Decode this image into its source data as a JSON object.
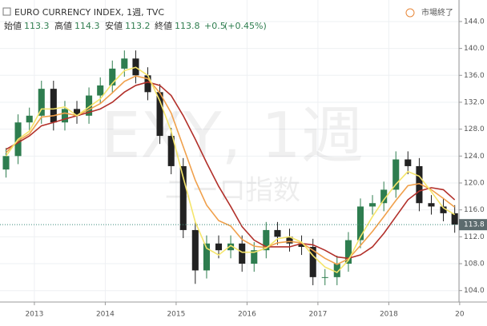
{
  "header": {
    "title": "EURO CURRENCY INDEX, 1週, TVC",
    "open_label": "始値",
    "open": "113.3",
    "high_label": "高値",
    "high": "114.3",
    "low_label": "安値",
    "low": "113.2",
    "close_label": "終値",
    "close": "113.8",
    "change": "+0.5",
    "change_pct": "(+0.45%)",
    "status": "市場終了",
    "watermark": "EXY, 1週",
    "watermark_sub": "ユーロ指数"
  },
  "chart_data": {
    "type": "candlestick",
    "x": [
      2012.6,
      2012.77,
      2012.93,
      2013.1,
      2013.27,
      2013.43,
      2013.6,
      2013.77,
      2013.93,
      2014.1,
      2014.27,
      2014.43,
      2014.6,
      2014.77,
      2014.93,
      2015.1,
      2015.27,
      2015.43,
      2015.6,
      2015.77,
      2015.93,
      2016.1,
      2016.27,
      2016.43,
      2016.6,
      2016.77,
      2016.93,
      2017.1,
      2017.27,
      2017.43,
      2017.6,
      2017.77,
      2017.93,
      2018.1,
      2018.27,
      2018.43,
      2018.6,
      2018.77,
      2018.93
    ],
    "open": [
      122,
      124,
      129,
      130,
      134,
      129,
      131,
      130,
      133,
      134.5,
      137,
      138.5,
      136,
      133.5,
      127,
      122.5,
      113,
      107,
      111,
      110,
      111,
      108,
      110,
      113,
      112,
      111,
      110.5,
      106,
      106,
      108,
      111.5,
      116.5,
      117,
      119,
      123.5,
      122.5,
      117,
      116.5,
      115.5
    ],
    "high": [
      125.2,
      130.2,
      131.2,
      135.2,
      135.2,
      132.2,
      132.2,
      134.2,
      135.7,
      138.2,
      139.7,
      139.7,
      137.2,
      134.7,
      128.2,
      123.7,
      114.2,
      112.2,
      112.2,
      112.2,
      112.2,
      111.2,
      114.2,
      114.2,
      113.2,
      112.2,
      111.7,
      107.2,
      109.2,
      112.7,
      117.7,
      118.2,
      120.2,
      124.7,
      124.7,
      123.7,
      118.2,
      117.7,
      116.7
    ],
    "low": [
      120.8,
      122.8,
      127.8,
      128.8,
      127.8,
      127.8,
      128.8,
      128.8,
      131.8,
      133.3,
      135.8,
      134.8,
      132.3,
      125.8,
      121.3,
      111.8,
      105,
      105.8,
      108.8,
      108.8,
      106.8,
      106.8,
      108.8,
      110.8,
      109.8,
      109.3,
      104.8,
      104.8,
      104.8,
      106.8,
      110.3,
      115.3,
      115.8,
      117.8,
      121.3,
      115.8,
      115.3,
      114.3,
      112.6
    ],
    "close": [
      124,
      129,
      130,
      134,
      129,
      131,
      130,
      133,
      134.5,
      137,
      138.5,
      136,
      133.5,
      127,
      122.5,
      113,
      107,
      111,
      110,
      111,
      108,
      110,
      113,
      112,
      111,
      110.5,
      106,
      106,
      108,
      111.5,
      116.5,
      117,
      119,
      123.5,
      122.5,
      117,
      116.5,
      115.5,
      113.8
    ],
    "up_color": "#2e7d4f",
    "down_color": "#222222",
    "ribbon": [
      {
        "color": "#b2302a",
        "values": [
          125,
          126,
          127,
          128.5,
          129,
          129.5,
          130,
          130.5,
          131,
          132,
          133.5,
          134.5,
          135,
          134.5,
          133,
          130,
          126.5,
          123,
          119.5,
          116.5,
          113.5,
          111.5,
          110.5,
          110.5,
          110.5,
          111,
          110.8,
          110,
          109,
          108.8,
          109.3,
          110.5,
          112.5,
          115,
          117.5,
          118.8,
          119.3,
          119,
          117.5
        ]
      },
      {
        "color": "#f0a04b",
        "values": [
          124.5,
          126.3,
          127.3,
          129.8,
          130,
          130.4,
          130,
          130.9,
          131.8,
          133.4,
          135.1,
          135.9,
          135.5,
          133.4,
          130.4,
          125.4,
          120.4,
          116.7,
          114.4,
          113.6,
          111.6,
          110.6,
          110.4,
          111.1,
          111.3,
          111.1,
          110,
          108.8,
          107.9,
          108.7,
          110.7,
          112.8,
          115,
          117.4,
          119.6,
          119.9,
          119,
          117.7,
          116.4
        ]
      },
      {
        "color": "#f5e56b",
        "values": [
          124,
          126.5,
          127.7,
          131,
          131,
          131.3,
          130,
          131.3,
          132.5,
          134.8,
          136.7,
          137.2,
          136,
          132.2,
          127.7,
          120.8,
          114.2,
          110.3,
          109.3,
          110.7,
          109.7,
          109.7,
          110.3,
          111.7,
          112,
          111.2,
          109.2,
          107.5,
          106.7,
          108.5,
          112,
          115,
          117.5,
          119.8,
          121.7,
          121,
          118.7,
          116.3,
          115.3
        ]
      }
    ],
    "last_value": 113.8,
    "xlim": [
      2012.515,
      2018.99
    ],
    "xticks": [
      2013,
      2014,
      2015,
      2016,
      2017,
      2018,
      {
        "value": 2019,
        "label": "20"
      }
    ],
    "ylim": [
      102.3,
      147.2
    ],
    "yticks": [
      {
        "value": 104,
        "label": "104.0"
      },
      {
        "value": 108,
        "label": "108.0"
      },
      {
        "value": 112,
        "label": "112.0"
      },
      {
        "value": 116,
        "label": "116.0"
      },
      {
        "value": 120,
        "label": "120.0"
      },
      {
        "value": 124,
        "label": "124.0"
      },
      {
        "value": 128,
        "label": "128.0"
      },
      {
        "value": 132,
        "label": "132.0"
      },
      {
        "value": 136,
        "label": "136.0"
      },
      {
        "value": 140,
        "label": "140.0"
      },
      {
        "value": 144,
        "label": "144.0"
      }
    ],
    "grid": true
  }
}
